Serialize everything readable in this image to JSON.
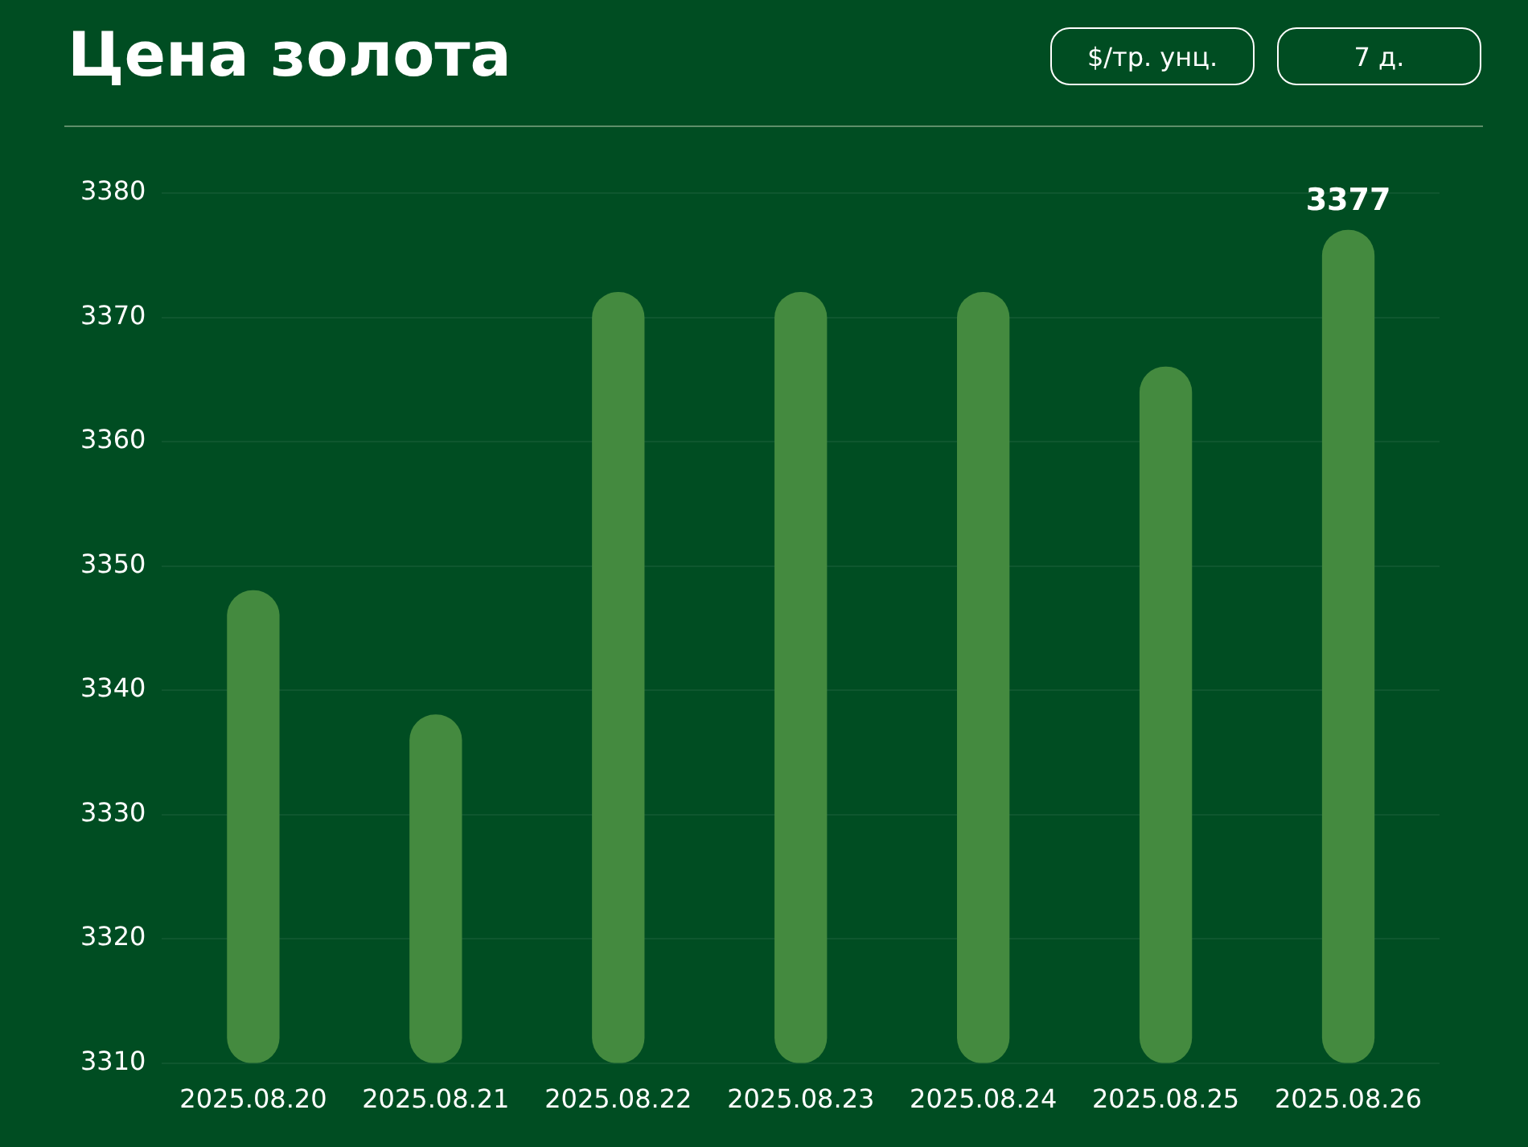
{
  "chart_data": {
    "type": "bar",
    "title": "Цена золота",
    "annotations": [
      "$/тр. унц.",
      "7 д."
    ],
    "categories": [
      "2025.08.20",
      "2025.08.21",
      "2025.08.22",
      "2025.08.23",
      "2025.08.24",
      "2025.08.25",
      "2025.08.26"
    ],
    "values": [
      3348,
      3338,
      3372,
      3372,
      3372,
      3366,
      3377
    ],
    "value_labels": [
      null,
      null,
      null,
      null,
      null,
      null,
      "3377"
    ],
    "color": "#448a3f",
    "ylim": [
      3310,
      3380
    ],
    "yticks": [
      3310,
      3320,
      3330,
      3340,
      3350,
      3360,
      3370,
      3380
    ],
    "grid": "y",
    "legend": false
  }
}
